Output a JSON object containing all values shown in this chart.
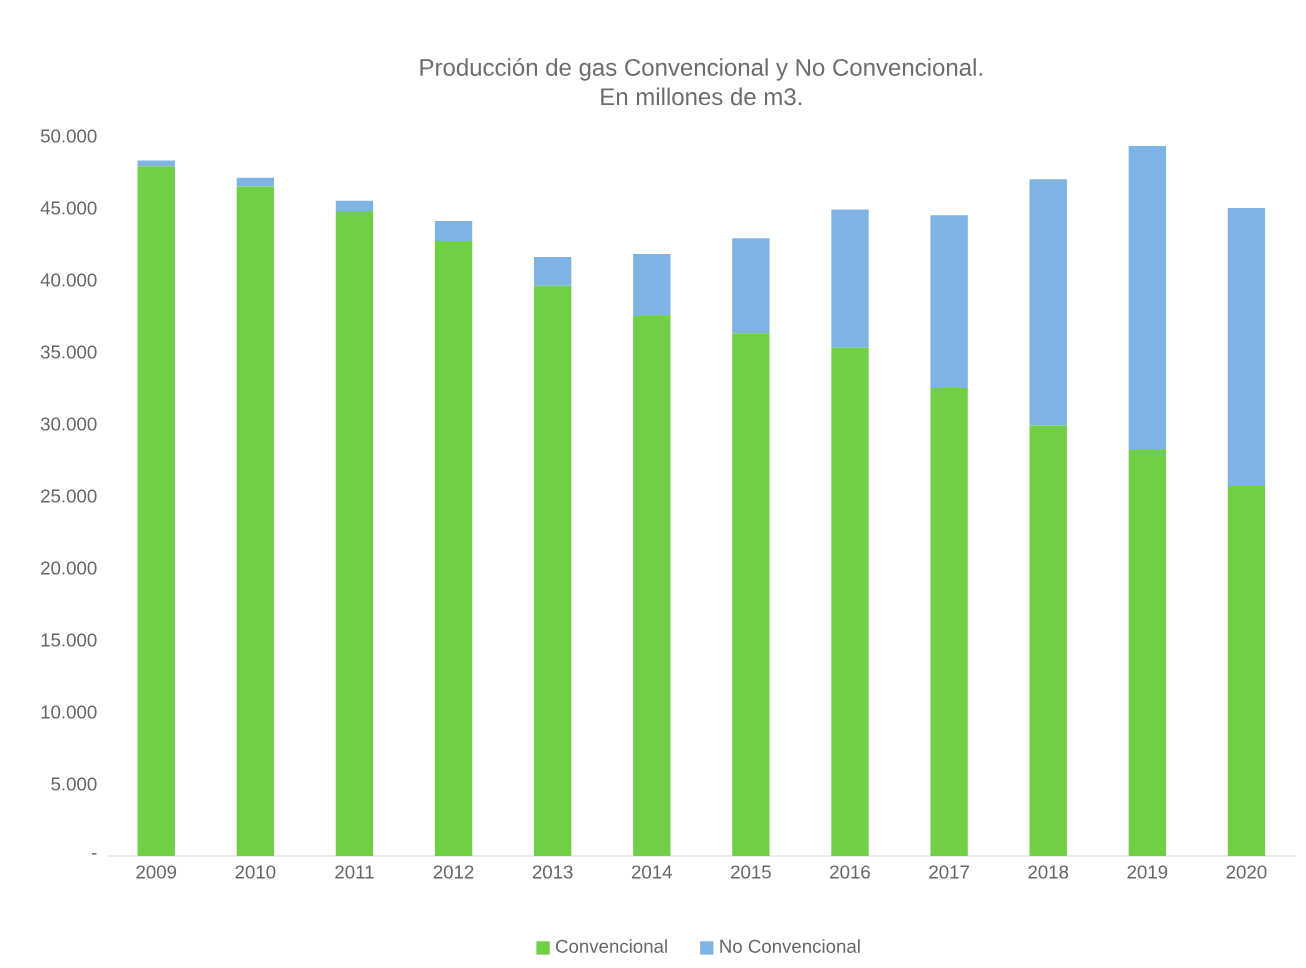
{
  "chart_data": {
    "type": "bar",
    "stacked": true,
    "title": "Producción de gas Convencional y No Convencional.\nEn millones de m3.",
    "categories": [
      "2009",
      "2010",
      "2011",
      "2012",
      "2013",
      "2014",
      "2015",
      "2016",
      "2017",
      "2018",
      "2019",
      "2020"
    ],
    "series": [
      {
        "name": "Convencional",
        "color": "#6fcf45",
        "values": [
          47900,
          46500,
          44800,
          42700,
          39600,
          37500,
          36300,
          35300,
          32500,
          29900,
          28200,
          25700
        ]
      },
      {
        "name": "No Convencional",
        "color": "#7eb3e3",
        "values": [
          400,
          600,
          700,
          1400,
          2000,
          4300,
          6600,
          9600,
          12000,
          17100,
          21100,
          19300
        ]
      }
    ],
    "ylim": [
      0,
      50000
    ],
    "yticks": [
      {
        "value": 0,
        "label": "-"
      },
      {
        "value": 5000,
        "label": "5.000"
      },
      {
        "value": 10000,
        "label": "10.000"
      },
      {
        "value": 15000,
        "label": "15.000"
      },
      {
        "value": 20000,
        "label": "20.000"
      },
      {
        "value": 25000,
        "label": "25.000"
      },
      {
        "value": 30000,
        "label": "30.000"
      },
      {
        "value": 35000,
        "label": "35.000"
      },
      {
        "value": 40000,
        "label": "40.000"
      },
      {
        "value": 45000,
        "label": "45.000"
      },
      {
        "value": 50000,
        "label": "50.000"
      }
    ],
    "legend": "bottom"
  }
}
